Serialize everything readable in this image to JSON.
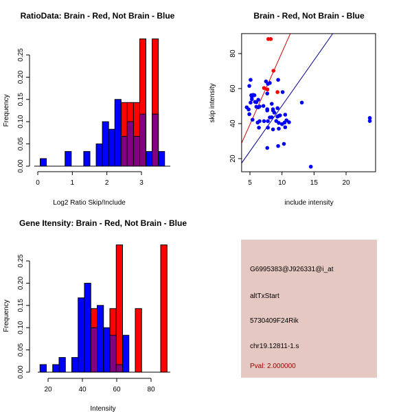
{
  "chart_data": [
    {
      "type": "bar",
      "title": "RatioData: Brain - Red, Not Brain - Blue",
      "xlabel": "Log2 Ratio Skip/Include",
      "ylabel": "Frequency",
      "xlim": [
        0,
        3.75
      ],
      "ylim": [
        0,
        0.29
      ],
      "xticks": [
        "0",
        "1",
        "2",
        "3"
      ],
      "yticks": [
        "0.00",
        "0.05",
        "0.10",
        "0.15",
        "0.20",
        "0.25"
      ],
      "bin_width": 0.18,
      "series": [
        {
          "name": "Not Brain",
          "color": "#0000ff",
          "bins": [
            [
              0.07,
              0.017
            ],
            [
              0.79,
              0.033
            ],
            [
              1.33,
              0.033
            ],
            [
              1.69,
              0.05
            ],
            [
              1.87,
              0.1
            ],
            [
              2.05,
              0.083
            ],
            [
              2.23,
              0.15
            ],
            [
              2.41,
              0.067
            ],
            [
              2.59,
              0.1
            ],
            [
              2.77,
              0.067
            ],
            [
              2.95,
              0.117
            ],
            [
              3.13,
              0.033
            ],
            [
              3.31,
              0.117
            ],
            [
              3.49,
              0.033
            ]
          ]
        },
        {
          "name": "Brain",
          "color": "#ff0000",
          "bins": [
            [
              2.41,
              0.143
            ],
            [
              2.59,
              0.143
            ],
            [
              2.77,
              0.143
            ],
            [
              2.95,
              0.286
            ],
            [
              3.31,
              0.286
            ]
          ]
        }
      ],
      "overlap_color": "#800080"
    },
    {
      "type": "scatter",
      "title": "Brain - Red, Not Brain - Blue",
      "xlabel": "include intensity",
      "ylabel": "skip intensity",
      "xlim": [
        3.7,
        24.6
      ],
      "ylim": [
        12.5,
        91.4
      ],
      "xticks": [
        "5",
        "10",
        "15",
        "20"
      ],
      "yticks": [
        "20",
        "40",
        "60",
        "80"
      ],
      "series": [
        {
          "name": "Not Brain",
          "color": "#0000ff",
          "points": [
            [
              5.1,
              65.0
            ],
            [
              4.9,
              61.5
            ],
            [
              4.5,
              49.3
            ],
            [
              4.8,
              48.1
            ],
            [
              4.9,
              45.4
            ],
            [
              5.1,
              52.0
            ],
            [
              5.2,
              56.2
            ],
            [
              5.5,
              56.4
            ],
            [
              5.7,
              56.2
            ],
            [
              5.3,
              53.9
            ],
            [
              5.3,
              55.3
            ],
            [
              5.8,
              52.4
            ],
            [
              6.0,
              49.6
            ],
            [
              6.0,
              52.2
            ],
            [
              6.3,
              53.6
            ],
            [
              6.3,
              49.3
            ],
            [
              6.5,
              49.8
            ],
            [
              5.4,
              42.2
            ],
            [
              6.2,
              40.6
            ],
            [
              6.5,
              41.4
            ],
            [
              6.4,
              37.7
            ],
            [
              7.1,
              50.1
            ],
            [
              7.2,
              41.4
            ],
            [
              7.5,
              64.1
            ],
            [
              7.7,
              57.2
            ],
            [
              7.8,
              62.7
            ],
            [
              8.1,
              63.2
            ],
            [
              7.7,
              48.2
            ],
            [
              7.7,
              47.5
            ],
            [
              7.8,
              41.4
            ],
            [
              7.8,
              37.7
            ],
            [
              7.7,
              26.1
            ],
            [
              8.4,
              51.3
            ],
            [
              8.1,
              43.5
            ],
            [
              8.4,
              43.6
            ],
            [
              8.6,
              36.7
            ],
            [
              8.6,
              48.2
            ],
            [
              8.6,
              47.5
            ],
            [
              8.8,
              46.3
            ],
            [
              9.1,
              41.5
            ],
            [
              9.3,
              48.8
            ],
            [
              9.4,
              65.0
            ],
            [
              9.3,
              44.0
            ],
            [
              9.5,
              44.4
            ],
            [
              9.7,
              44.7
            ],
            [
              9.5,
              40.4
            ],
            [
              9.5,
              37.1
            ],
            [
              9.4,
              27.2
            ],
            [
              10.1,
              58.0
            ],
            [
              10.0,
              39.7
            ],
            [
              10.3,
              28.4
            ],
            [
              10.5,
              45.1
            ],
            [
              10.5,
              37.9
            ],
            [
              10.7,
              41.9
            ],
            [
              10.4,
              40.6
            ],
            [
              11.1,
              40.8
            ],
            [
              13.1,
              52.0
            ],
            [
              14.5,
              15.4
            ],
            [
              23.7,
              43.2
            ],
            [
              23.7,
              41.5
            ]
          ],
          "fit": {
            "intercept": -1.8,
            "slope": 5.2,
            "color": "#00008b"
          }
        },
        {
          "name": "Brain",
          "color": "#ff0000",
          "points": [
            [
              7.87,
              88.3
            ],
            [
              8.25,
              88.3
            ],
            [
              8.67,
              70.2
            ],
            [
              7.2,
              60.3
            ],
            [
              7.73,
              59.5
            ],
            [
              9.3,
              58.0
            ]
          ],
          "fit": {
            "intercept": -1.6,
            "slope": 8.23,
            "color": "#cd0000"
          }
        }
      ]
    },
    {
      "type": "bar",
      "title": "Gene Itensity: Brain - Red, Not Brain - Blue",
      "xlabel": "Intensity",
      "ylabel": "Frequency",
      "xlim": [
        0,
        100
      ],
      "ylim": [
        0,
        0.29
      ],
      "xticks": [
        "20",
        "40",
        "60",
        "80"
      ],
      "yticks": [
        "0.00",
        "0.05",
        "0.10",
        "0.15",
        "0.20",
        "0.25"
      ],
      "bin_width": 3.7,
      "series": [
        {
          "name": "Not Brain",
          "color": "#0000ff",
          "bins": [
            [
              15.3,
              0.017
            ],
            [
              22.7,
              0.017
            ],
            [
              26.4,
              0.033
            ],
            [
              33.8,
              0.033
            ],
            [
              37.5,
              0.167
            ],
            [
              41.2,
              0.2
            ],
            [
              44.9,
              0.1
            ],
            [
              48.6,
              0.15
            ],
            [
              52.3,
              0.1
            ],
            [
              56.0,
              0.083
            ],
            [
              59.7,
              0.017
            ],
            [
              63.4,
              0.083
            ]
          ]
        },
        {
          "name": "Brain",
          "color": "#ff0000",
          "bins": [
            [
              44.9,
              0.143
            ],
            [
              56.0,
              0.143
            ],
            [
              59.7,
              0.286
            ],
            [
              70.8,
              0.143
            ],
            [
              85.6,
              0.286
            ]
          ]
        }
      ],
      "overlap_color": "#800080"
    }
  ],
  "info": {
    "probe": "G6995383@J926331@i_at",
    "event": "altTxStart",
    "gene": "5730409F24Rik",
    "location": "chr19.12811-1.s",
    "pval": "Pval: 2.000000",
    "bg": "#e5c8c2",
    "pval_color": "#a00000"
  }
}
